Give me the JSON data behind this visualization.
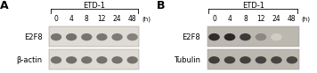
{
  "panel_a": {
    "label": "A",
    "drug_label": "ETD-1",
    "time_points": [
      "0",
      "4",
      "8",
      "12",
      "24",
      "48"
    ],
    "time_unit": "(h)",
    "rows": [
      {
        "name": "E2F8",
        "bands": [
          0.7,
          0.72,
          0.7,
          0.68,
          0.65,
          0.6
        ]
      },
      {
        "name": "β-actin",
        "bands": [
          0.72,
          0.74,
          0.72,
          0.72,
          0.71,
          0.71
        ]
      }
    ],
    "bg_color": "#e8e4de",
    "gel_bg": "#dedad4",
    "band_base_dark": 0.3
  },
  "panel_b": {
    "label": "B",
    "drug_label": "ETD-1",
    "time_points": [
      "0",
      "4",
      "8",
      "12",
      "24",
      "48"
    ],
    "time_unit": "(h)",
    "rows": [
      {
        "name": "E2F8",
        "bands": [
          0.88,
          0.92,
          0.82,
          0.4,
          0.04,
          0.02
        ]
      },
      {
        "name": "Tubulin",
        "bands": [
          0.8,
          0.78,
          0.79,
          0.77,
          0.76,
          0.75
        ]
      }
    ],
    "bg_color": "#b8b4ac",
    "gel_bg": "#bcb8b0",
    "band_base_dark": 0.1
  },
  "fig_bg": "#ffffff",
  "font_size_tick": 5.5,
  "font_size_gene": 6.0,
  "font_size_panel": 9.0,
  "font_size_etd": 6.0
}
